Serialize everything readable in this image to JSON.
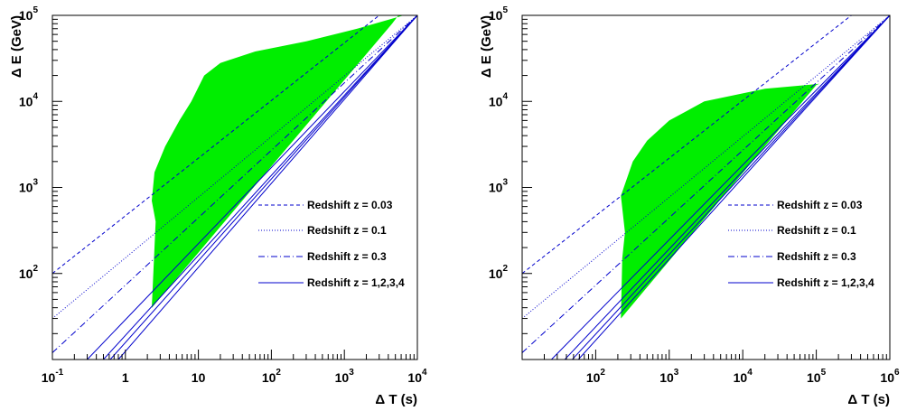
{
  "chart_data": [
    {
      "type": "area",
      "id": "left",
      "xlabel": "Δ T (s)",
      "ylabel": "Δ E (GeV)",
      "xscale": "log",
      "yscale": "log",
      "xlim": [
        0.1,
        10000
      ],
      "ylim": [
        10,
        100000
      ],
      "xticks": [
        {
          "value": 0.1,
          "base": "10",
          "exp": "-1"
        },
        {
          "value": 1,
          "base": "1",
          "exp": ""
        },
        {
          "value": 10,
          "base": "10",
          "exp": ""
        },
        {
          "value": 100,
          "base": "10",
          "exp": "2"
        },
        {
          "value": 1000,
          "base": "10",
          "exp": "3"
        },
        {
          "value": 10000,
          "base": "10",
          "exp": "4"
        }
      ],
      "yticks": [
        {
          "value": 100,
          "base": "10",
          "exp": "2"
        },
        {
          "value": 1000,
          "base": "10",
          "exp": "3"
        },
        {
          "value": 10000,
          "base": "10",
          "exp": "4"
        },
        {
          "value": 100000,
          "base": "10",
          "exp": "5"
        }
      ],
      "region": {
        "color": "#00ee00",
        "points": [
          [
            2.3,
            40
          ],
          [
            2.5,
            200
          ],
          [
            2.6,
            400
          ],
          [
            2.3,
            700
          ],
          [
            2.5,
            1500
          ],
          [
            3.5,
            3000
          ],
          [
            5.5,
            6000
          ],
          [
            8,
            10000
          ],
          [
            12,
            20000
          ],
          [
            20,
            28000
          ],
          [
            60,
            38000
          ],
          [
            300,
            50000
          ],
          [
            1500,
            70000
          ],
          [
            6500,
            100000
          ],
          [
            5500,
            100000
          ],
          [
            4500,
            80000
          ]
        ]
      },
      "lines": [
        {
          "style": "dashed",
          "color": "#0000cc",
          "x": [
            0.1,
            3000
          ],
          "y": [
            100,
            100000
          ]
        },
        {
          "style": "dotted",
          "color": "#0000cc",
          "x": [
            0.1,
            10000
          ],
          "y": [
            30,
            100000
          ]
        },
        {
          "style": "dashdot",
          "color": "#0000cc",
          "x": [
            0.1,
            10000
          ],
          "y": [
            12,
            100000
          ]
        },
        {
          "style": "solid",
          "color": "#0000cc",
          "x": [
            0.3,
            10000
          ],
          "y": [
            10,
            100000
          ]
        },
        {
          "style": "solid",
          "color": "#0000cc",
          "x": [
            0.5,
            10000
          ],
          "y": [
            10,
            100000
          ]
        },
        {
          "style": "solid",
          "color": "#0000cc",
          "x": [
            0.62,
            10000
          ],
          "y": [
            10,
            100000
          ]
        },
        {
          "style": "solid",
          "color": "#0000cc",
          "x": [
            0.8,
            10000
          ],
          "y": [
            10,
            100000
          ]
        }
      ],
      "legend": [
        {
          "label": "Redshift z = 0.03",
          "style": "dashed"
        },
        {
          "label": "Redshift z = 0.1",
          "style": "dotted"
        },
        {
          "label": "Redshift z = 0.3",
          "style": "dashdot"
        },
        {
          "label": "Redshift z = 1,2,3,4",
          "style": "solid"
        }
      ],
      "legend_position": "bottom-right"
    },
    {
      "type": "area",
      "id": "right",
      "xlabel": "Δ T (s)",
      "ylabel": "Δ E (GeV)",
      "xscale": "log",
      "yscale": "log",
      "xlim": [
        10,
        1000000
      ],
      "ylim": [
        10,
        100000
      ],
      "xticks": [
        {
          "value": 100,
          "base": "10",
          "exp": "2"
        },
        {
          "value": 1000,
          "base": "10",
          "exp": "3"
        },
        {
          "value": 10000,
          "base": "10",
          "exp": "4"
        },
        {
          "value": 100000,
          "base": "10",
          "exp": "5"
        },
        {
          "value": 1000000,
          "base": "10",
          "exp": "6"
        }
      ],
      "yticks": [
        {
          "value": 100,
          "base": "10",
          "exp": "2"
        },
        {
          "value": 1000,
          "base": "10",
          "exp": "3"
        },
        {
          "value": 10000,
          "base": "10",
          "exp": "4"
        },
        {
          "value": 100000,
          "base": "10",
          "exp": "5"
        }
      ],
      "region": {
        "color": "#00ee00",
        "points": [
          [
            220,
            30
          ],
          [
            230,
            150
          ],
          [
            250,
            300
          ],
          [
            220,
            800
          ],
          [
            320,
            2000
          ],
          [
            500,
            3500
          ],
          [
            1000,
            6000
          ],
          [
            3000,
            10000
          ],
          [
            20000,
            14000
          ],
          [
            110000,
            16000
          ],
          [
            100000,
            15500
          ]
        ]
      },
      "lines": [
        {
          "style": "dashed",
          "color": "#0000cc",
          "x": [
            10,
            300000
          ],
          "y": [
            100,
            100000
          ]
        },
        {
          "style": "dotted",
          "color": "#0000cc",
          "x": [
            10,
            1000000
          ],
          "y": [
            30,
            100000
          ]
        },
        {
          "style": "dashdot",
          "color": "#0000cc",
          "x": [
            10,
            1000000
          ],
          "y": [
            12,
            100000
          ]
        },
        {
          "style": "solid",
          "color": "#0000cc",
          "x": [
            25,
            1000000
          ],
          "y": [
            10,
            100000
          ]
        },
        {
          "style": "solid",
          "color": "#0000cc",
          "x": [
            38,
            1000000
          ],
          "y": [
            10,
            100000
          ]
        },
        {
          "style": "solid",
          "color": "#0000cc",
          "x": [
            48,
            1000000
          ],
          "y": [
            10,
            100000
          ]
        },
        {
          "style": "solid",
          "color": "#0000cc",
          "x": [
            58,
            1000000
          ],
          "y": [
            10,
            100000
          ]
        }
      ],
      "legend": [
        {
          "label": "Redshift z = 0.03",
          "style": "dashed"
        },
        {
          "label": "Redshift z = 0.1",
          "style": "dotted"
        },
        {
          "label": "Redshift z = 0.3",
          "style": "dashdot"
        },
        {
          "label": "Redshift z = 1,2,3,4",
          "style": "solid"
        }
      ],
      "legend_position": "bottom-right"
    }
  ]
}
